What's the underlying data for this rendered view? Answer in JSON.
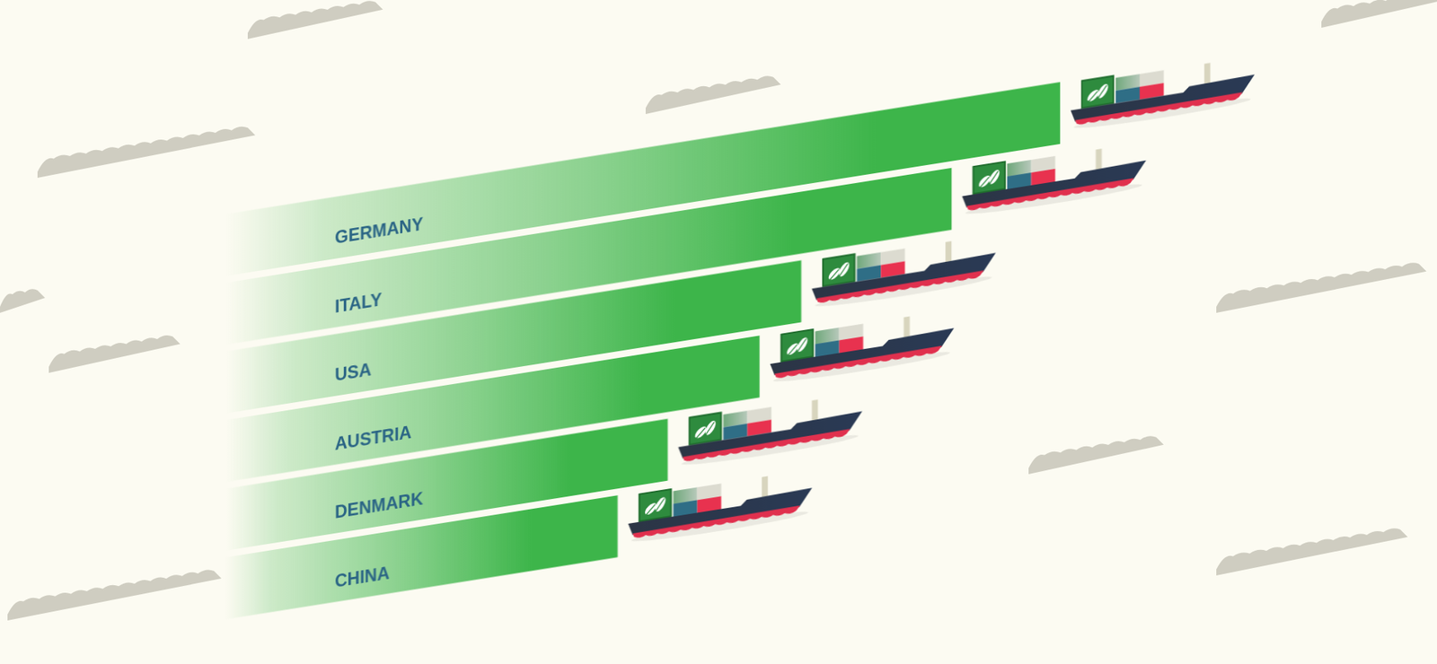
{
  "chart_data": {
    "type": "bar",
    "orientation": "horizontal",
    "categories": [
      "GERMANY",
      "ITALY",
      "USA",
      "AUSTRIA",
      "DENMARK",
      "CHINA"
    ],
    "values": [
      100,
      87,
      69,
      64,
      53,
      47
    ],
    "color": "#3db54a",
    "xlim": [
      0,
      100
    ],
    "grid": false,
    "tick_labels": false
  }
}
